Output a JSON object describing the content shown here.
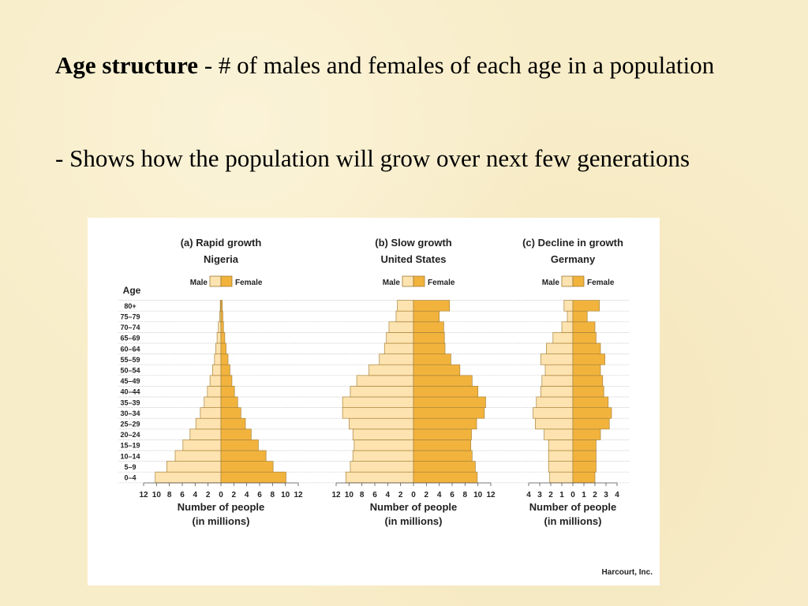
{
  "slide": {
    "term": "Age structure",
    "definition": " - # of males and females of each age in a population",
    "bullet": "- Shows how the population will grow over next few generations",
    "source": "Harcourt, Inc."
  },
  "chart_data": [
    {
      "type": "pyramid",
      "title": "(a) Rapid growth",
      "subtitle": "Nigeria",
      "ylabel": "Age",
      "categories": [
        "0–4",
        "5–9",
        "10–14",
        "15–19",
        "20–24",
        "25–29",
        "30–34",
        "35–39",
        "40–44",
        "45–49",
        "50–54",
        "55–59",
        "60–64",
        "65–69",
        "70–74",
        "75–79",
        "80+"
      ],
      "series": [
        {
          "name": "Male",
          "color": "#fde3b0",
          "values": [
            10.2,
            8.4,
            7.1,
            5.9,
            4.8,
            3.9,
            3.2,
            2.6,
            2.1,
            1.7,
            1.3,
            1.0,
            0.8,
            0.6,
            0.4,
            0.2,
            0.1
          ]
        },
        {
          "name": "Female",
          "color": "#f2b33d",
          "values": [
            10.1,
            8.1,
            7.0,
            5.8,
            4.7,
            3.8,
            3.1,
            2.6,
            2.1,
            1.7,
            1.4,
            1.1,
            0.8,
            0.6,
            0.4,
            0.3,
            0.2
          ]
        }
      ],
      "xlim": [
        0,
        12
      ],
      "xticks": [
        0,
        2,
        4,
        6,
        8,
        10,
        12
      ],
      "xlabel": [
        "Number of people",
        "(in millions)"
      ],
      "grid": true
    },
    {
      "type": "pyramid",
      "title": "(b) Slow growth",
      "subtitle": "United States",
      "series": [
        {
          "name": "Male",
          "color": "#fde3b0",
          "values": [
            10.5,
            9.8,
            9.4,
            9.2,
            9.4,
            10.0,
            11.0,
            11.0,
            9.8,
            8.8,
            6.9,
            5.3,
            4.5,
            4.2,
            3.8,
            2.7,
            2.5
          ]
        },
        {
          "name": "Female",
          "color": "#f2b33d",
          "values": [
            9.9,
            9.6,
            9.1,
            8.9,
            9.0,
            9.8,
            11.0,
            11.2,
            10.0,
            9.1,
            7.2,
            5.8,
            4.9,
            4.8,
            4.7,
            4.0,
            5.6
          ]
        }
      ],
      "xlim": [
        0,
        12
      ],
      "xticks": [
        0,
        2,
        4,
        6,
        8,
        10,
        12
      ],
      "xlabel": [
        "Number of people",
        "(in millions)"
      ],
      "grid": true
    },
    {
      "type": "pyramid",
      "title": "(c) Decline in growth",
      "subtitle": "Germany",
      "series": [
        {
          "name": "Male",
          "color": "#fde3b0",
          "values": [
            2.1,
            2.2,
            2.2,
            2.2,
            2.6,
            3.4,
            3.6,
            3.3,
            2.9,
            2.8,
            2.5,
            2.9,
            2.4,
            1.8,
            1.0,
            0.5,
            0.8
          ]
        },
        {
          "name": "Female",
          "color": "#f2b33d",
          "values": [
            2.0,
            2.1,
            2.1,
            2.1,
            2.5,
            3.3,
            3.5,
            3.2,
            2.8,
            2.7,
            2.5,
            2.9,
            2.5,
            2.1,
            2.0,
            1.3,
            2.4
          ]
        }
      ],
      "xlim": [
        0,
        4
      ],
      "xticks": [
        0,
        1,
        2,
        3,
        4
      ],
      "xlabel": [
        "Number of people",
        "(in millions)"
      ],
      "grid": true
    }
  ]
}
